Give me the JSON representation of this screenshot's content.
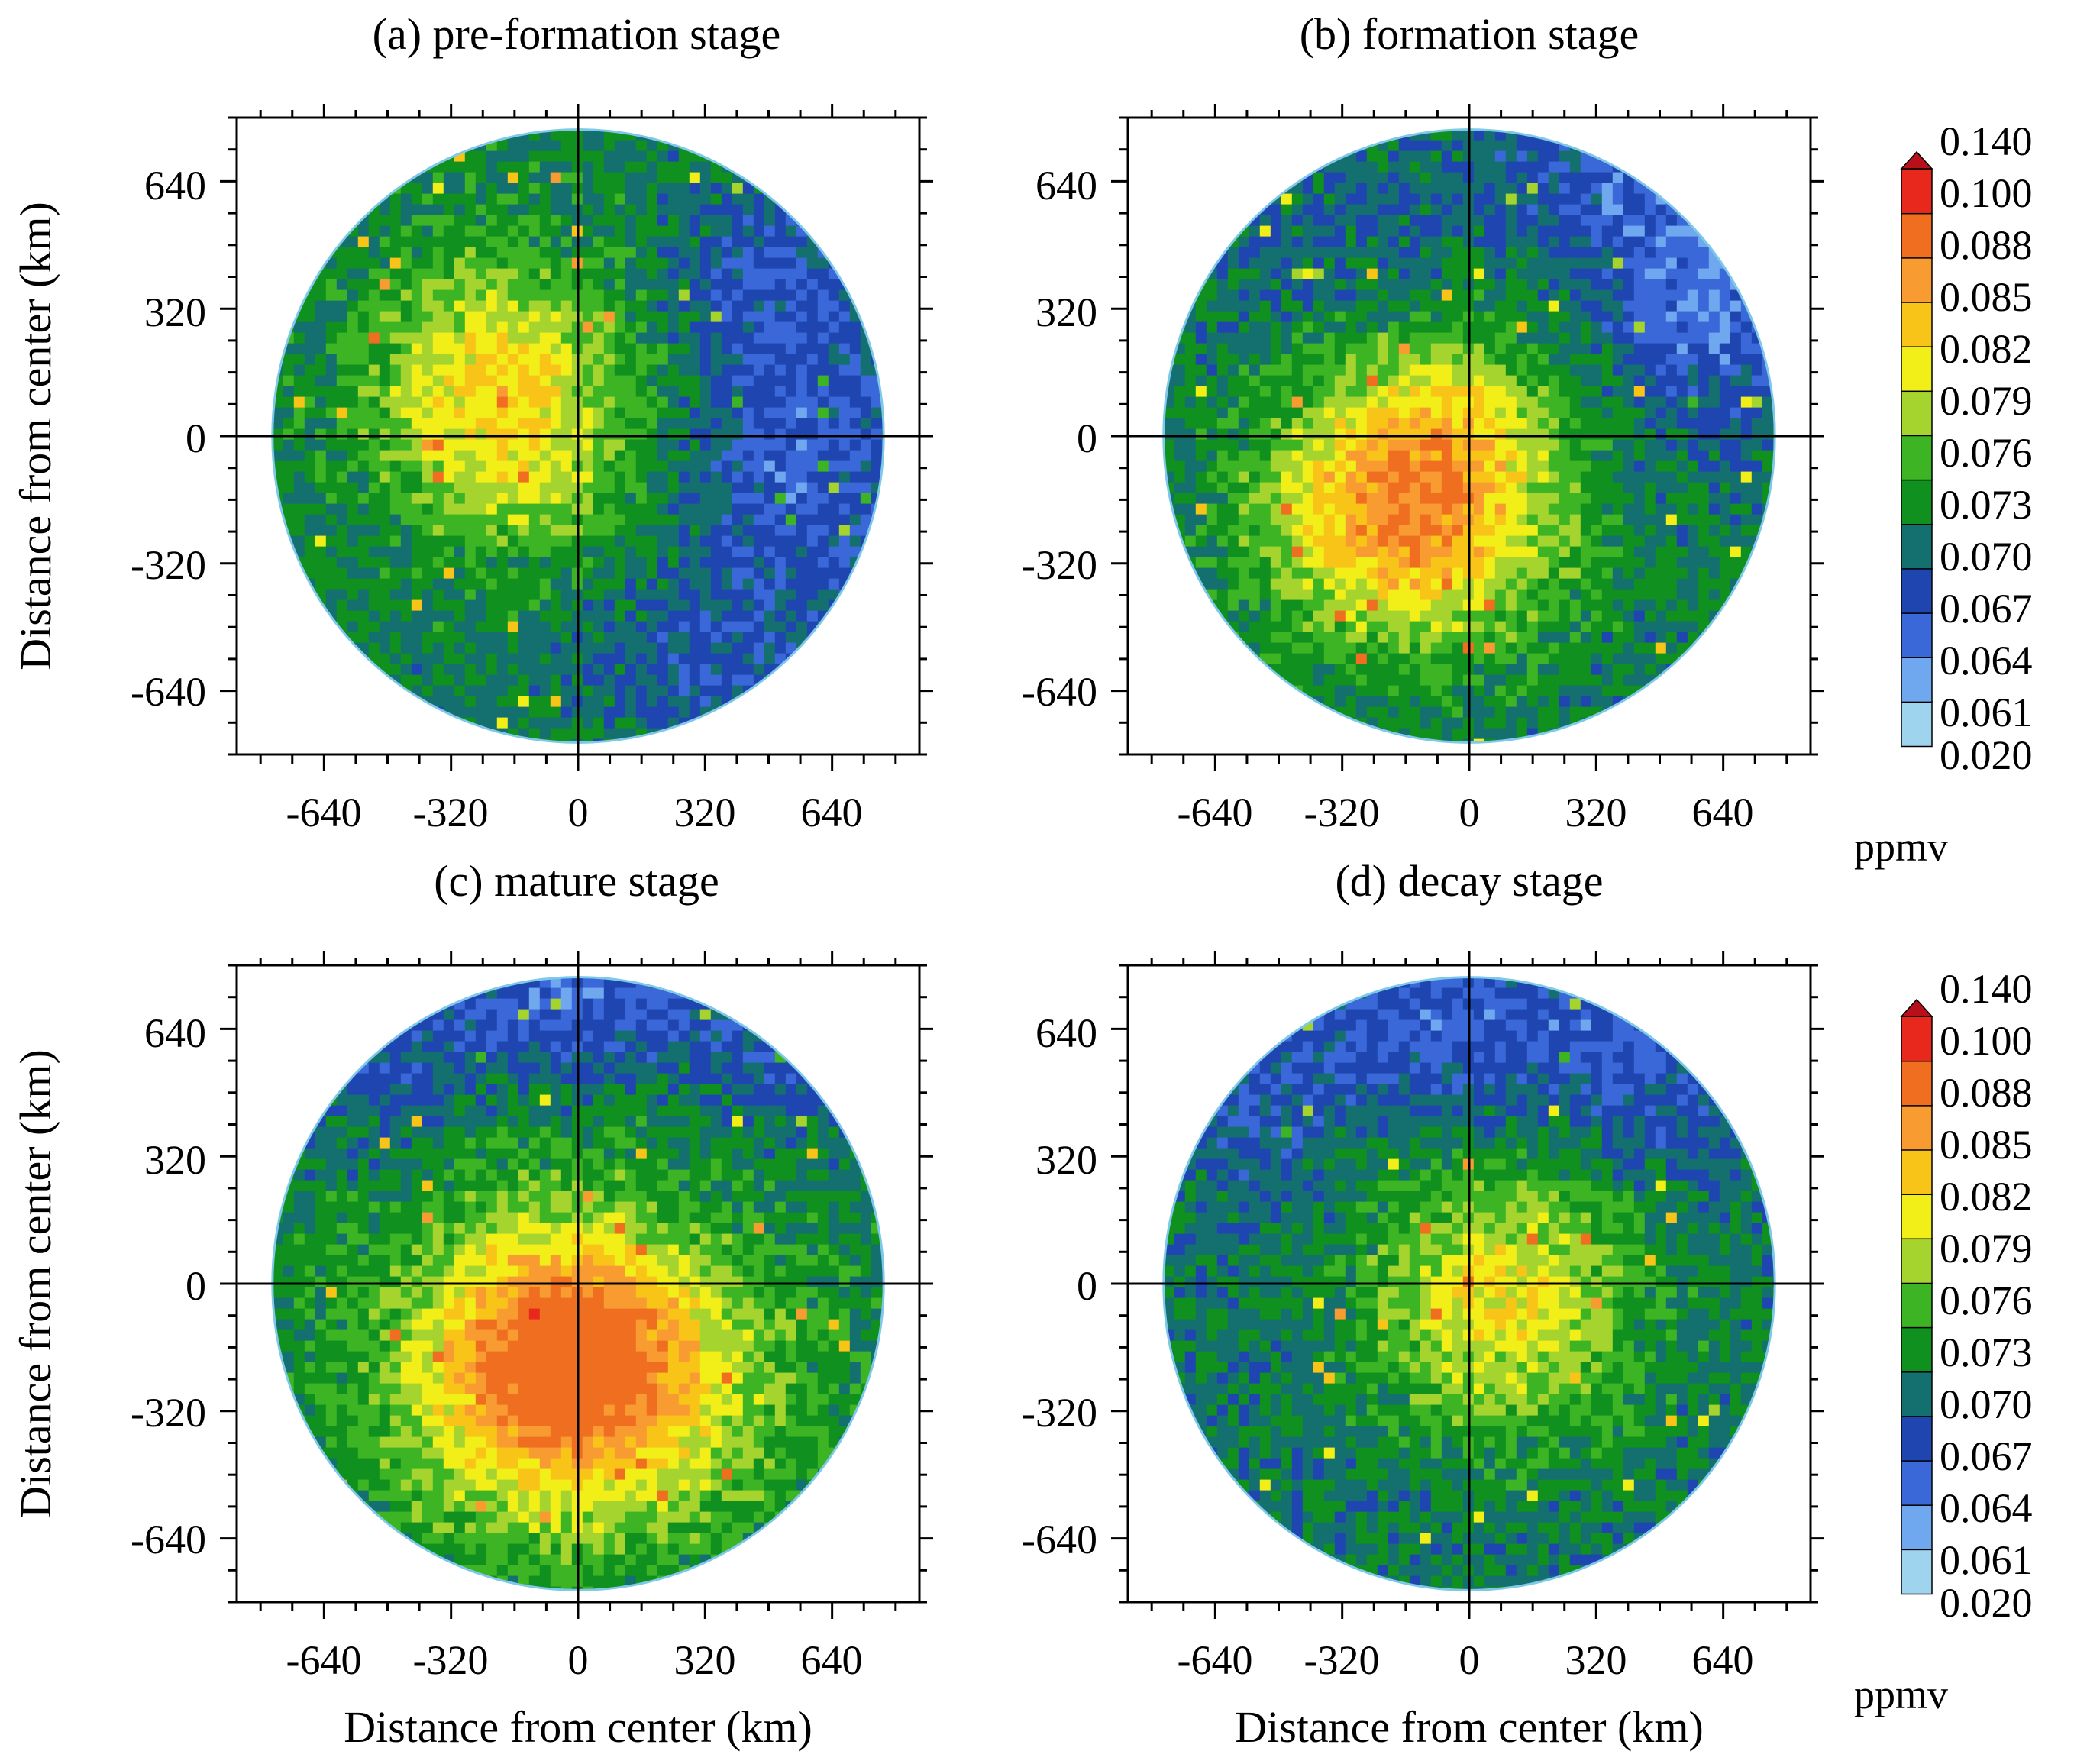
{
  "chart_data": [
    {
      "type": "heatmap",
      "title": "(a)  pre-formation stage",
      "xlabel": "",
      "ylabel": "Distance from center (km)",
      "xticks": [
        "-640",
        "-320",
        "0",
        "320",
        "640"
      ],
      "yticks": [
        "640",
        "320",
        "0",
        "-320",
        "-640"
      ],
      "xlim": [
        -860,
        860
      ],
      "ylim": [
        -800,
        800
      ],
      "domain_radius_km": 770,
      "units": "ppmv",
      "pattern": {
        "background": 0.07,
        "blobs": [
          {
            "x": -200,
            "y": 130,
            "sx": 320,
            "sy": 300,
            "amp": 0.012
          },
          {
            "x": -120,
            "y": -150,
            "sx": 220,
            "sy": 180,
            "amp": 0.004
          },
          {
            "x": 560,
            "y": -90,
            "sx": 280,
            "sy": 460,
            "amp": -0.007
          },
          {
            "x": 450,
            "y": 430,
            "sx": 230,
            "sy": 220,
            "amp": -0.004
          },
          {
            "x": 280,
            "y": -600,
            "sx": 240,
            "sy": 200,
            "amp": -0.004
          }
        ]
      }
    },
    {
      "type": "heatmap",
      "title": "(b)  formation stage",
      "xlabel": "",
      "ylabel": "",
      "xticks": [
        "-640",
        "-320",
        "0",
        "320",
        "640"
      ],
      "yticks": [
        "640",
        "320",
        "0",
        "-320",
        "-640"
      ],
      "xlim": [
        -860,
        860
      ],
      "ylim": [
        -800,
        800
      ],
      "domain_radius_km": 770,
      "units": "ppmv",
      "pattern": {
        "background": 0.069,
        "blobs": [
          {
            "x": -150,
            "y": -190,
            "sx": 360,
            "sy": 320,
            "amp": 0.019
          },
          {
            "x": -40,
            "y": 60,
            "sx": 260,
            "sy": 200,
            "amp": 0.005
          },
          {
            "x": 600,
            "y": 380,
            "sx": 260,
            "sy": 300,
            "amp": -0.008
          },
          {
            "x": 300,
            "y": 650,
            "sx": 300,
            "sy": 160,
            "amp": -0.004
          },
          {
            "x": -360,
            "y": 520,
            "sx": 260,
            "sy": 180,
            "amp": -0.002
          }
        ]
      }
    },
    {
      "type": "heatmap",
      "title": "(c)  mature stage",
      "xlabel": "Distance from center (km)",
      "ylabel": "Distance from center (km)",
      "xticks": [
        "-640",
        "-320",
        "0",
        "320",
        "640"
      ],
      "yticks": [
        "640",
        "320",
        "0",
        "-320",
        "-640"
      ],
      "xlim": [
        -860,
        860
      ],
      "ylim": [
        -800,
        800
      ],
      "domain_radius_km": 770,
      "units": "ppmv",
      "pattern": {
        "background": 0.07,
        "blobs": [
          {
            "x": 0,
            "y": -240,
            "sx": 420,
            "sy": 360,
            "amp": 0.02
          },
          {
            "x": -60,
            "y": -80,
            "sx": 260,
            "sy": 260,
            "amp": 0.006
          },
          {
            "x": 0,
            "y": 720,
            "sx": 520,
            "sy": 190,
            "amp": -0.007
          },
          {
            "x": 560,
            "y": 560,
            "sx": 200,
            "sy": 200,
            "amp": -0.004
          },
          {
            "x": -500,
            "y": 520,
            "sx": 200,
            "sy": 200,
            "amp": -0.003
          }
        ]
      }
    },
    {
      "type": "heatmap",
      "title": "(d)  decay stage",
      "xlabel": "Distance from center (km)",
      "ylabel": "",
      "xticks": [
        "-640",
        "-320",
        "0",
        "320",
        "640"
      ],
      "yticks": [
        "640",
        "320",
        "0",
        "-320",
        "-640"
      ],
      "xlim": [
        -860,
        860
      ],
      "ylim": [
        -800,
        800
      ],
      "domain_radius_km": 770,
      "units": "ppmv",
      "pattern": {
        "background": 0.069,
        "blobs": [
          {
            "x": 80,
            "y": -40,
            "sx": 330,
            "sy": 320,
            "amp": 0.012
          },
          {
            "x": 0,
            "y": 650,
            "sx": 580,
            "sy": 230,
            "amp": -0.006
          },
          {
            "x": 520,
            "y": 480,
            "sx": 240,
            "sy": 220,
            "amp": -0.003
          },
          {
            "x": -560,
            "y": 380,
            "sx": 220,
            "sy": 220,
            "amp": -0.003
          }
        ]
      }
    }
  ],
  "colorbar": {
    "units": "ppmv",
    "labels": [
      "0.140",
      "0.100",
      "0.088",
      "0.085",
      "0.082",
      "0.079",
      "0.076",
      "0.073",
      "0.070",
      "0.067",
      "0.064",
      "0.061",
      "0.020"
    ],
    "levels": [
      0.02,
      0.061,
      0.064,
      0.067,
      0.07,
      0.073,
      0.076,
      0.079,
      0.082,
      0.085,
      0.088,
      0.1,
      0.14
    ],
    "colors": [
      "#9fd4ef",
      "#6fa8ee",
      "#3a68d8",
      "#1f46b0",
      "#14706e",
      "#10901e",
      "#3cb424",
      "#a6d42e",
      "#f2ef18",
      "#f8c418",
      "#f89c32",
      "#f06e20",
      "#e8281c",
      "#b8101a"
    ],
    "top_arrow_color": "#b8101a"
  },
  "colors": {
    "axis": "#000000",
    "background": "#ffffff",
    "domain_edge": "#7ec8ea"
  }
}
